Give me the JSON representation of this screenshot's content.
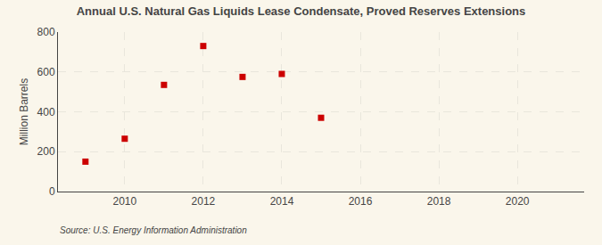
{
  "chart_data": {
    "type": "scatter",
    "title": "Annual U.S. Natural Gas Liquids Lease Condensate, Proved Reserves Extensions",
    "y_label": "Million Barrels",
    "annotations": [
      "Source: U.S. Energy Information Administration"
    ],
    "x": [
      2009,
      2010,
      2011,
      2012,
      2013,
      2014,
      2015
    ],
    "values": [
      150,
      265,
      535,
      730,
      575,
      590,
      370
    ],
    "color": "#cc0000",
    "marker": "square",
    "xlim": [
      2008.3,
      2021.7
    ],
    "xticks": [
      2010,
      2012,
      2014,
      2016,
      2018,
      2020
    ],
    "ylim": [
      0,
      800
    ],
    "yticks": [
      0,
      200,
      400,
      600,
      800
    ],
    "grid": true
  }
}
